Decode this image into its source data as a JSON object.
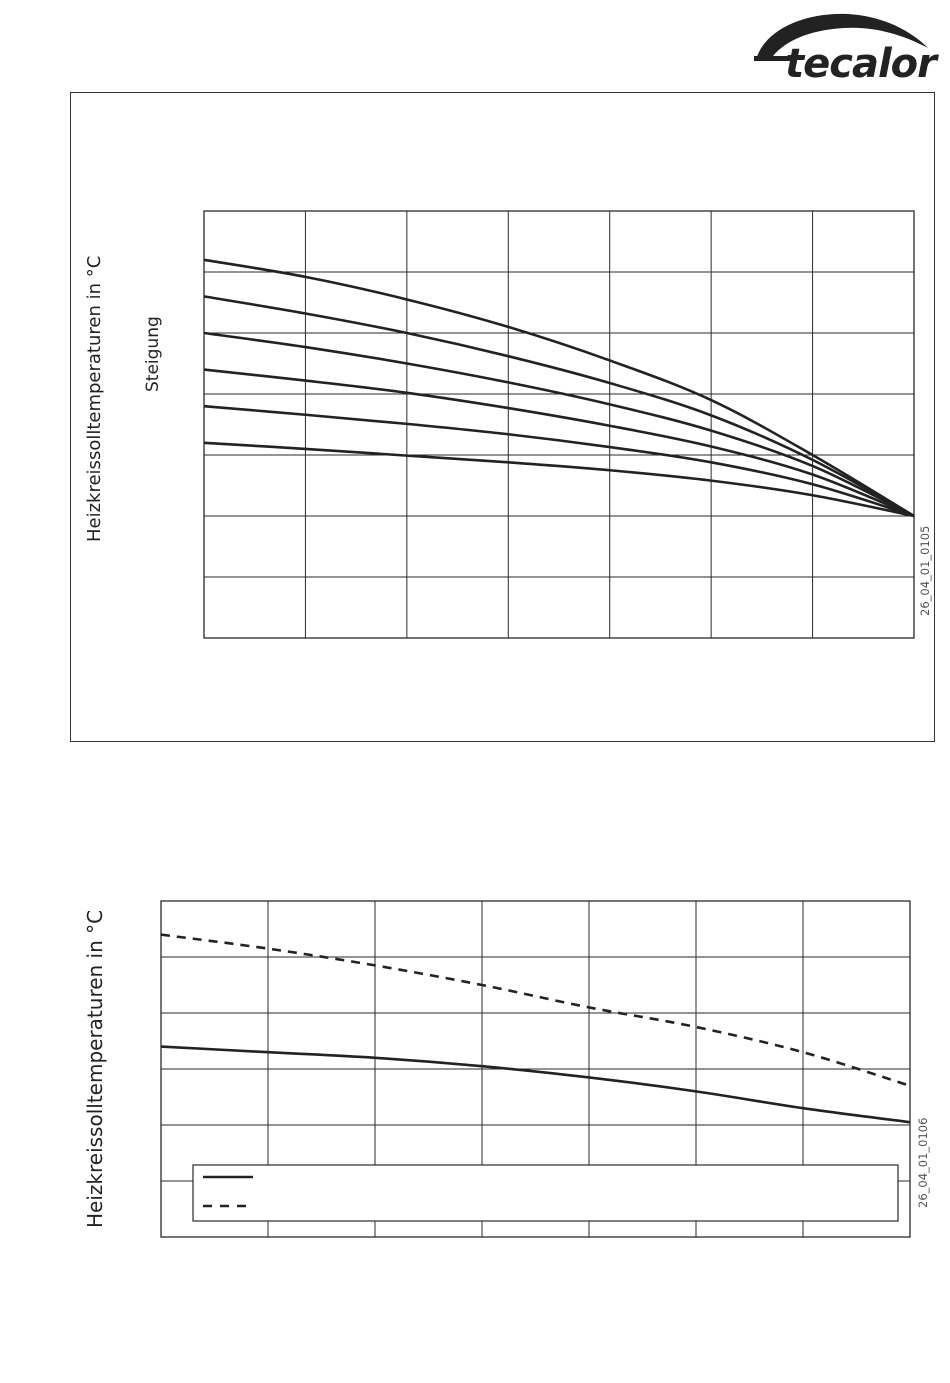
{
  "brand": {
    "name": "tecalor"
  },
  "colors": {
    "line": "#222222",
    "grid": "#2a2a2a",
    "text": "#222222",
    "figure_id": "#555555"
  },
  "figure1": {
    "ylabel": "Heizkreissolltemperaturen in °C",
    "curve_label": "Steigung",
    "figure_id": "26_04_01_0105"
  },
  "figure2": {
    "ylabel": "Heizkreissolltemperaturen in °C",
    "figure_id": "26_04_01_0106"
  },
  "chart_data": [
    {
      "type": "line",
      "title": "",
      "ylabel": "Heizkreissolltemperaturen in °C",
      "annotation": "Steigung",
      "grid": true,
      "x_divisions": 7,
      "y_divisions": 7,
      "x": [
        0,
        1,
        2,
        3,
        4,
        5,
        6,
        7
      ],
      "series": [
        {
          "values": [
            6.2,
            5.92,
            5.55,
            5.1,
            4.55,
            3.9,
            3.0,
            2.0
          ],
          "line": "solid"
        },
        {
          "values": [
            5.6,
            5.32,
            5.0,
            4.62,
            4.18,
            3.65,
            2.92,
            2.0
          ],
          "line": "solid"
        },
        {
          "values": [
            5.0,
            4.77,
            4.5,
            4.19,
            3.83,
            3.4,
            2.82,
            2.0
          ],
          "line": "solid"
        },
        {
          "values": [
            4.4,
            4.22,
            4.02,
            3.77,
            3.48,
            3.14,
            2.68,
            2.0
          ],
          "line": "solid"
        },
        {
          "values": [
            3.8,
            3.66,
            3.51,
            3.34,
            3.13,
            2.88,
            2.52,
            2.0
          ],
          "line": "solid"
        },
        {
          "values": [
            3.2,
            3.1,
            2.99,
            2.88,
            2.75,
            2.58,
            2.34,
            2.0
          ],
          "line": "solid"
        }
      ],
      "ylim": [
        0,
        7
      ],
      "xlim": [
        0,
        7
      ]
    },
    {
      "type": "line",
      "title": "",
      "ylabel": "Heizkreissolltemperaturen in °C",
      "grid": true,
      "x_divisions": 7,
      "y_divisions": 6,
      "legend": "bottom, boxed, two entries without text",
      "x": [
        0,
        1,
        2,
        3,
        4,
        5,
        6,
        7
      ],
      "series": [
        {
          "values": [
            3.4,
            3.3,
            3.2,
            3.05,
            2.85,
            2.6,
            2.3,
            2.05
          ],
          "line": "solid"
        },
        {
          "values": [
            5.4,
            5.15,
            4.85,
            4.5,
            4.1,
            3.75,
            3.3,
            2.7
          ],
          "line": "dashed"
        }
      ],
      "ylim": [
        0,
        6
      ],
      "xlim": [
        0,
        7
      ]
    }
  ]
}
